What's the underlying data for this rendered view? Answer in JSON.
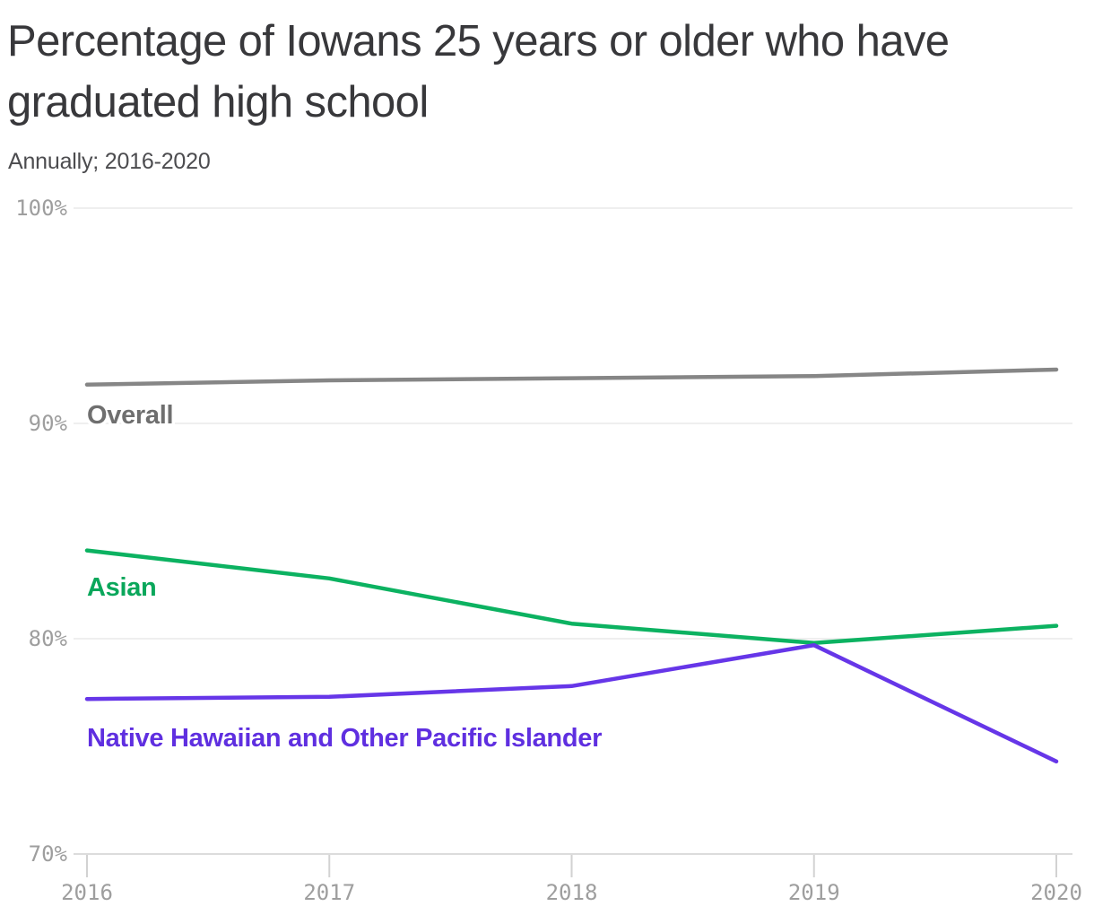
{
  "header": {
    "title": "Percentage of Iowans 25 years or older who have graduated high school",
    "subtitle": "Annually; 2016-2020"
  },
  "chart_data": {
    "type": "line",
    "title": "Percentage of Iowans 25 years or older who have graduated high school",
    "subtitle": "Annually; 2016-2020",
    "x_labels": [
      "2016",
      "2017",
      "2018",
      "2019",
      "2020"
    ],
    "ylim": [
      70,
      100
    ],
    "y_ticks": [
      {
        "value": 100,
        "label": "100%"
      },
      {
        "value": 90,
        "label": "90%"
      },
      {
        "value": 80,
        "label": "80%"
      },
      {
        "value": 70,
        "label": "70%"
      }
    ],
    "grid": "horizontal",
    "legend": "inline-series-labels",
    "series": [
      {
        "name": "Overall",
        "color": "#868686",
        "label_color": "#6f6f6f",
        "label_y": 90.0,
        "values": [
          91.8,
          92.0,
          92.1,
          92.2,
          92.5
        ]
      },
      {
        "name": "Asian",
        "color": "#0cb261",
        "label_color": "#0aa75b",
        "label_y": 82.0,
        "values": [
          84.1,
          82.8,
          80.7,
          79.8,
          80.6
        ]
      },
      {
        "name": "Native Hawaiian and Other Pacific Islander",
        "color": "#6636e8",
        "label_color": "#5f2fe0",
        "label_y": 75.0,
        "values": [
          77.2,
          77.3,
          77.8,
          79.7,
          74.3
        ]
      }
    ],
    "axis_colors": {
      "gridline": "#eaeaea",
      "baseline": "#dcdcdc",
      "tick": "#d2d2d2",
      "tick_label": "#9e9e9e"
    }
  }
}
